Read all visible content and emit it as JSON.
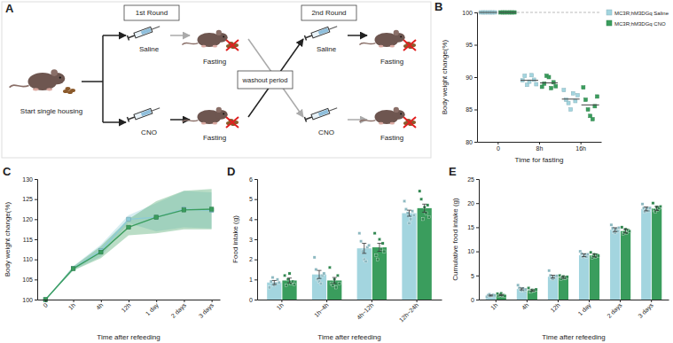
{
  "diagram": {
    "label": "A",
    "start": "Start single housing",
    "rounds": [
      "1st Round",
      "2nd Round"
    ],
    "treatments": [
      "Saline",
      "CNO"
    ],
    "fasting": "Fasting",
    "washout": "washout period"
  },
  "chart_data": [
    {
      "type": "scatter",
      "title": "B",
      "categories": [
        "0",
        "8h",
        "16h"
      ],
      "xlabel": "Time for fasting",
      "ylabel": "Body weight change(%)",
      "ylim": [
        80,
        100
      ],
      "yticks": [
        80,
        85,
        90,
        95,
        100
      ],
      "hline": 100,
      "legend": "upper right",
      "marker": "square",
      "series": [
        {
          "name": "MC3R;hM3DGq Saline",
          "color": "#a3d5df",
          "values": [
            [
              100,
              100,
              100,
              100,
              100,
              100,
              100
            ],
            [
              89.5,
              90.2,
              88.8,
              89.3,
              90.3,
              89.6,
              88.9
            ],
            [
              88.0,
              86.5,
              86.0,
              85.0,
              87.5,
              86.3,
              87.2
            ]
          ],
          "mean": [
            100,
            89.5,
            86.6
          ]
        },
        {
          "name": "MC3R;hM3DGq CNO",
          "color": "#3a9d5d",
          "values": [
            [
              100,
              100,
              100,
              100,
              100,
              100,
              100
            ],
            [
              88.5,
              89.0,
              90.2,
              90.0,
              88.3,
              89.2,
              88.6
            ],
            [
              88.4,
              86.5,
              85.0,
              84.0,
              83.5,
              85.5,
              87.0
            ]
          ],
          "mean": [
            100,
            89.1,
            85.7
          ]
        }
      ]
    },
    {
      "type": "line",
      "title": "C",
      "categories": [
        "0",
        "1h",
        "4h",
        "12h",
        "1 day",
        "2 days",
        "3 days"
      ],
      "xlabel": "Time after refeeding",
      "ylabel": "Body weight change(%)",
      "ylim": [
        100,
        130
      ],
      "yticks": [
        100,
        105,
        110,
        115,
        120,
        125,
        130
      ],
      "marker": "square",
      "series": [
        {
          "name": "MC3R;hM3DGq Saline",
          "color": "#8ccbd8",
          "values": [
            100,
            107.8,
            112.2,
            120.0,
            120.5,
            122.5,
            122.2
          ],
          "error": [
            0,
            0.5,
            1.5,
            1.0,
            3.5,
            4.5,
            4.5
          ]
        },
        {
          "name": "MC3R;hM3DGq CNO",
          "color": "#3a9d5d",
          "values": [
            100,
            107.7,
            111.8,
            118.0,
            120.5,
            122.3,
            122.5
          ],
          "error": [
            0,
            0.5,
            1.5,
            2.0,
            4.0,
            4.8,
            5.0
          ]
        }
      ]
    },
    {
      "type": "bar",
      "title": "D",
      "categories": [
        "1h",
        "1h~4h",
        "4h~12h",
        "12h~24h"
      ],
      "xlabel": "Time after refeeding",
      "ylabel": "Food intake (g)",
      "ylim": [
        0,
        6
      ],
      "yticks": [
        0,
        1,
        2,
        3,
        4,
        5,
        6
      ],
      "series": [
        {
          "name": "MC3R;hM3DGq Saline",
          "color": "#a3d5df",
          "values": [
            0.85,
            1.25,
            2.55,
            4.3
          ],
          "error": [
            0.1,
            0.2,
            0.25,
            0.15
          ],
          "points": [
            [
              0.6,
              0.9,
              1.1,
              0.7,
              0.8,
              1.0,
              0.85
            ],
            [
              2.1,
              1.5,
              1.0,
              0.9,
              0.8,
              1.2,
              1.3
            ],
            [
              3.3,
              2.9,
              2.4,
              2.0,
              1.9,
              2.6,
              2.7
            ],
            [
              4.9,
              4.5,
              4.3,
              3.8,
              4.0,
              4.4,
              4.2
            ]
          ]
        },
        {
          "name": "MC3R;hM3DGq CNO",
          "color": "#3a9d5d",
          "values": [
            0.95,
            0.95,
            2.6,
            4.55
          ],
          "error": [
            0.12,
            0.15,
            0.2,
            0.2
          ],
          "points": [
            [
              1.2,
              0.7,
              1.0,
              1.3,
              0.8,
              0.9,
              0.75
            ],
            [
              1.6,
              0.8,
              0.7,
              1.0,
              0.6,
              1.2,
              0.8
            ],
            [
              3.3,
              2.2,
              2.0,
              3.0,
              2.5,
              2.8,
              2.4
            ],
            [
              5.4,
              5.0,
              4.0,
              4.6,
              4.3,
              4.7,
              4.1
            ]
          ]
        }
      ]
    },
    {
      "type": "bar",
      "title": "E",
      "categories": [
        "1h",
        "4h",
        "12h",
        "1 day",
        "2 days",
        "3 days"
      ],
      "xlabel": "Time after refeeding",
      "ylabel": "Cumulative food intake (g)",
      "ylim": [
        0,
        25
      ],
      "yticks": [
        0,
        5,
        10,
        15,
        20,
        25
      ],
      "series": [
        {
          "name": "MC3R;hM3DGq Saline",
          "color": "#a3d5df",
          "values": [
            0.85,
            2.2,
            4.75,
            9.2,
            14.5,
            18.8
          ],
          "error": [
            0.1,
            0.2,
            0.3,
            0.3,
            0.4,
            0.4
          ],
          "points": [
            [
              0.6,
              0.9,
              1.1,
              0.7,
              0.8,
              1.0,
              0.85
            ],
            [
              3.0,
              2.4,
              2.0,
              1.9,
              2.3,
              1.8,
              2.1
            ],
            [
              6.0,
              5.0,
              4.5,
              4.2,
              4.6,
              4.8,
              4.9
            ],
            [
              10.0,
              9.5,
              8.8,
              9.0,
              9.3,
              8.9,
              9.4
            ],
            [
              15.5,
              14.8,
              14.0,
              13.8,
              14.6,
              14.2,
              14.9
            ],
            [
              19.8,
              19.0,
              18.2,
              18.5,
              18.9,
              18.4,
              19.0
            ]
          ]
        },
        {
          "name": "MC3R;hM3DGq CNO",
          "color": "#3a9d5d",
          "values": [
            0.95,
            1.9,
            4.6,
            9.15,
            14.2,
            18.9
          ],
          "error": [
            0.1,
            0.15,
            0.2,
            0.3,
            0.4,
            0.4
          ],
          "points": [
            [
              1.2,
              0.7,
              1.0,
              1.3,
              0.8,
              0.9,
              0.75
            ],
            [
              2.4,
              1.7,
              1.6,
              2.0,
              1.8,
              1.9,
              2.1
            ],
            [
              5.0,
              4.3,
              4.6,
              4.8,
              4.4,
              4.5,
              4.7
            ],
            [
              9.8,
              8.7,
              9.0,
              9.4,
              8.9,
              9.3,
              9.1
            ],
            [
              15.0,
              13.6,
              14.0,
              14.6,
              13.8,
              14.4,
              14.2
            ],
            [
              20.0,
              18.5,
              18.2,
              19.2,
              18.6,
              19.0,
              19.3
            ]
          ]
        }
      ]
    }
  ]
}
